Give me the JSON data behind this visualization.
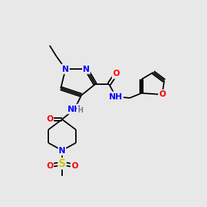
{
  "bg_color": "#e8e8e8",
  "atom_colors": {
    "N": "#0000ff",
    "O": "#ff0000",
    "S": "#cccc00",
    "C": "#000000",
    "H": "#708090"
  },
  "bond_color": "#000000"
}
